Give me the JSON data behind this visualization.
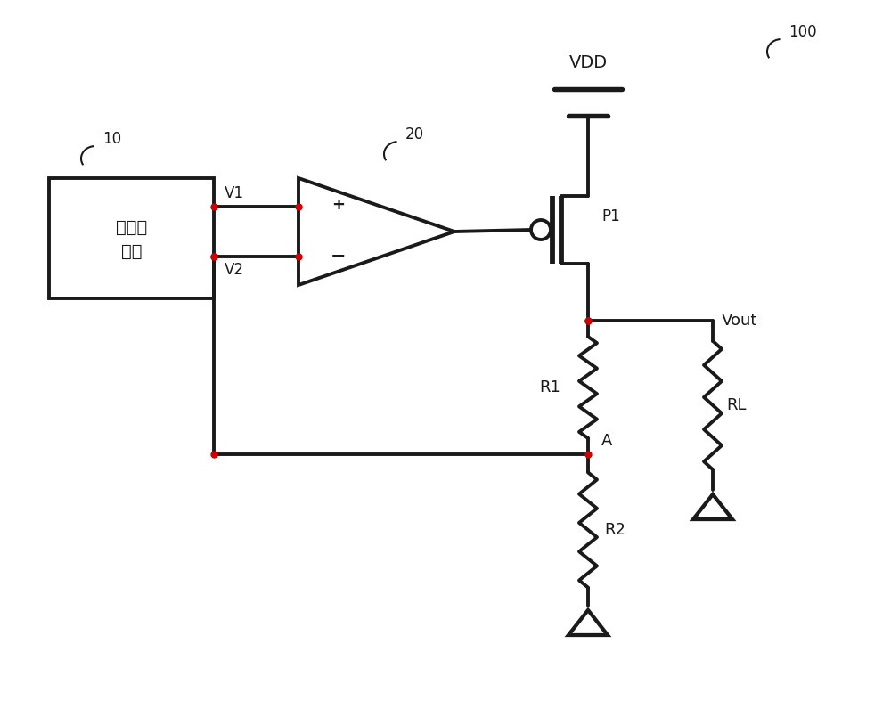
{
  "bg_color": "#ffffff",
  "line_color": "#1a1a1a",
  "line_width": 2.8,
  "dot_color": "#cc0000",
  "label_100": "100",
  "label_10": "10",
  "label_20": "20",
  "label_bandgap_line1": "带隙基",
  "label_bandgap_line2": "准源",
  "label_VDD": "VDD",
  "label_P1": "P1",
  "label_V1": "V1",
  "label_V2": "V2",
  "label_R1": "R1",
  "label_R2": "R2",
  "label_RL": "RL",
  "label_A": "A",
  "label_Vout": "Vout",
  "fig_width": 10.0,
  "fig_height": 7.96,
  "dpi": 100
}
